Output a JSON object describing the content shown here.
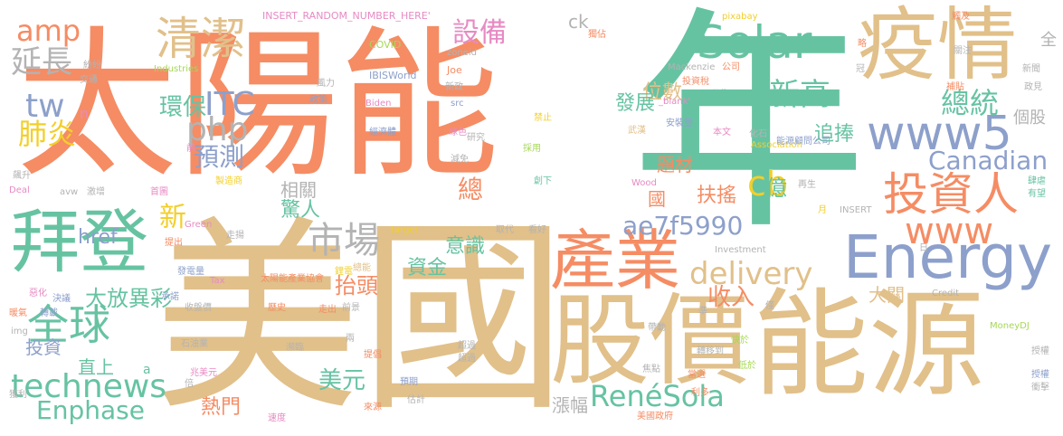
{
  "palette": {
    "orange": "#f58c64",
    "teal": "#66c3a2",
    "tan": "#e1c08a",
    "blue": "#8da0cb",
    "pink": "#e78ac3",
    "lime": "#a6d854",
    "yellow": "#f2cf2b",
    "gray": "#b3b3b3"
  },
  "words": [
    {
      "text": "太陽能",
      "color": "orange"
    },
    {
      "text": "年",
      "color": "teal"
    },
    {
      "text": "美國",
      "color": "tan"
    },
    {
      "text": "股價",
      "color": "tan"
    },
    {
      "text": "能源",
      "color": "tan"
    },
    {
      "text": "疫情",
      "color": "tan"
    },
    {
      "text": "產業",
      "color": "orange"
    },
    {
      "text": "拜登",
      "color": "teal"
    },
    {
      "text": "Energy",
      "color": "blue"
    },
    {
      "text": "Solar",
      "color": "teal"
    },
    {
      "text": "投資人",
      "color": "orange"
    },
    {
      "text": "www5",
      "color": "blue"
    },
    {
      "text": "清潔",
      "color": "tan"
    },
    {
      "text": "全球",
      "color": "teal"
    },
    {
      "text": "technews",
      "color": "teal"
    },
    {
      "text": "市場",
      "color": "gray"
    },
    {
      "text": "delivery",
      "color": "tan"
    },
    {
      "text": "www",
      "color": "orange"
    },
    {
      "text": "amp",
      "color": "orange"
    },
    {
      "text": "延長",
      "color": "gray"
    },
    {
      "text": "tw",
      "color": "blue"
    },
    {
      "text": "php",
      "color": "gray"
    },
    {
      "text": "ITC",
      "color": "blue"
    },
    {
      "text": "肺炎",
      "color": "yellow"
    },
    {
      "text": "預測",
      "color": "blue"
    },
    {
      "text": "環保",
      "color": "teal"
    },
    {
      "text": "新高",
      "color": "teal"
    },
    {
      "text": "設備",
      "color": "pink"
    },
    {
      "text": "總統",
      "color": "teal"
    },
    {
      "text": "cb",
      "color": "yellow"
    },
    {
      "text": "Canadian",
      "color": "blue"
    },
    {
      "text": "ae7f5990",
      "color": "blue"
    },
    {
      "text": "RenéSola",
      "color": "teal"
    },
    {
      "text": "Enphase",
      "color": "teal"
    },
    {
      "text": "美元",
      "color": "teal"
    },
    {
      "text": "收入",
      "color": "orange"
    },
    {
      "text": "大放異彩",
      "color": "teal"
    },
    {
      "text": "抬頭",
      "color": "orange"
    },
    {
      "text": "新",
      "color": "yellow"
    },
    {
      "text": "href",
      "color": "blue"
    },
    {
      "text": "總",
      "color": "orange"
    },
    {
      "text": "驚人",
      "color": "teal"
    },
    {
      "text": "相關",
      "color": "gray"
    },
    {
      "text": "意識",
      "color": "teal"
    },
    {
      "text": "資金",
      "color": "teal"
    },
    {
      "text": "位數",
      "color": "tan"
    },
    {
      "text": "發展",
      "color": "teal"
    },
    {
      "text": "追捧",
      "color": "teal"
    },
    {
      "text": "扶搖",
      "color": "orange"
    },
    {
      "text": "億",
      "color": "teal"
    },
    {
      "text": "國",
      "color": "orange"
    },
    {
      "text": "題材",
      "color": "orange"
    },
    {
      "text": "大關",
      "color": "tan"
    },
    {
      "text": "熱門",
      "color": "orange"
    },
    {
      "text": "漲幅",
      "color": "gray"
    },
    {
      "text": "直上",
      "color": "teal"
    },
    {
      "text": "投資",
      "color": "blue"
    },
    {
      "text": "個股",
      "color": "gray"
    },
    {
      "text": "全",
      "color": "gray"
    },
    {
      "text": "ck",
      "color": "gray"
    },
    {
      "text": "INSERT_RANDOM_NUMBER_HERE'",
      "color": "pink"
    },
    {
      "text": "COVID",
      "color": "lime"
    },
    {
      "text": "IBISWorld",
      "color": "blue"
    },
    {
      "text": "Industries",
      "color": "lime"
    },
    {
      "text": "Joe",
      "color": "orange"
    },
    {
      "text": "Biden",
      "color": "pink"
    },
    {
      "text": "src",
      "color": "blue"
    },
    {
      "text": "zoneid",
      "color": "gray"
    },
    {
      "text": "pixabay",
      "color": "yellow"
    },
    {
      "text": "Mackenzie",
      "color": "gray"
    },
    {
      "text": "公司",
      "color": "orange"
    },
    {
      "text": "_blank'",
      "color": "pink"
    },
    {
      "text": "Association",
      "color": "yellow"
    },
    {
      "text": "Wood",
      "color": "pink"
    },
    {
      "text": "INSERT",
      "color": "gray"
    },
    {
      "text": "Investment",
      "color": "gray"
    },
    {
      "text": "Credit",
      "color": "gray"
    },
    {
      "text": "MoneyDJ",
      "color": "lime"
    },
    {
      "text": "Tax",
      "color": "pink"
    },
    {
      "text": "Green",
      "color": "pink"
    },
    {
      "text": "target",
      "color": "yellow"
    },
    {
      "text": "Deal",
      "color": "pink"
    },
    {
      "text": "img",
      "color": "gray"
    },
    {
      "text": "avw",
      "color": "gray"
    },
    {
      "text": "n",
      "color": "pink"
    },
    {
      "text": "a",
      "color": "teal"
    },
    {
      "text": "紛紛",
      "color": "gray"
    },
    {
      "text": "交通",
      "color": "gray"
    },
    {
      "text": "風力",
      "color": "gray"
    },
    {
      "text": "政策",
      "color": "blue"
    },
    {
      "text": "新政",
      "color": "gray"
    },
    {
      "text": "超過",
      "color": "gray"
    },
    {
      "text": "綠色",
      "color": "pink"
    },
    {
      "text": "研究",
      "color": "gray"
    },
    {
      "text": "減免",
      "color": "gray"
    },
    {
      "text": "禁止",
      "color": "yellow"
    },
    {
      "text": "採用",
      "color": "lime"
    },
    {
      "text": "武漢",
      "color": "tan"
    },
    {
      "text": "安裝量",
      "color": "blue"
    },
    {
      "text": "本文",
      "color": "pink"
    },
    {
      "text": "化石",
      "color": "gray"
    },
    {
      "text": "能源顧問公司",
      "color": "blue"
    },
    {
      "text": "投資稅",
      "color": "orange"
    },
    {
      "text": "公告",
      "color": "teal"
    },
    {
      "text": "經濟體",
      "color": "blue"
    },
    {
      "text": "創下",
      "color": "teal"
    },
    {
      "text": "製造商",
      "color": "yellow"
    },
    {
      "text": "首圖",
      "color": "pink"
    },
    {
      "text": "激增",
      "color": "gray"
    },
    {
      "text": "飆升",
      "color": "gray"
    },
    {
      "text": "發電量",
      "color": "blue"
    },
    {
      "text": "提出",
      "color": "orange"
    },
    {
      "text": "走揚",
      "color": "gray"
    },
    {
      "text": "取代",
      "color": "gray"
    },
    {
      "text": "看好",
      "color": "gray"
    },
    {
      "text": "太陽能產業協會",
      "color": "orange"
    },
    {
      "text": "總能",
      "color": "tan"
    },
    {
      "text": "承諾",
      "color": "blue"
    },
    {
      "text": "收盤價",
      "color": "gray"
    },
    {
      "text": "歷史",
      "color": "orange"
    },
    {
      "text": "走出",
      "color": "orange"
    },
    {
      "text": "前景",
      "color": "gray"
    },
    {
      "text": "石油業",
      "color": "gray"
    },
    {
      "text": "瀕臨",
      "color": "gray"
    },
    {
      "text": "提倡",
      "color": "orange"
    },
    {
      "text": "兩",
      "color": "gray"
    },
    {
      "text": "預期",
      "color": "blue"
    },
    {
      "text": "超過",
      "color": "gray"
    },
    {
      "text": "估計",
      "color": "gray"
    },
    {
      "text": "帶動",
      "color": "gray"
    },
    {
      "text": "轉移到",
      "color": "gray"
    },
    {
      "text": "當選",
      "color": "orange"
    },
    {
      "text": "利多",
      "color": "orange"
    },
    {
      "text": "美國政府",
      "color": "orange"
    },
    {
      "text": "焦點",
      "color": "gray"
    },
    {
      "text": "快於",
      "color": "lime"
    },
    {
      "text": "低於",
      "color": "lime"
    },
    {
      "text": "再生",
      "color": "gray"
    },
    {
      "text": "日",
      "color": "gray"
    },
    {
      "text": "月",
      "color": "yellow"
    },
    {
      "text": "肆虐",
      "color": "teal"
    },
    {
      "text": "有望",
      "color": "teal"
    },
    {
      "text": "倍",
      "color": "gray"
    },
    {
      "text": "僅",
      "color": "gray"
    },
    {
      "text": "準",
      "color": "gray"
    },
    {
      "text": "暖氣",
      "color": "orange"
    },
    {
      "text": "轉載",
      "color": "blue"
    },
    {
      "text": "決議",
      "color": "blue"
    },
    {
      "text": "惡化",
      "color": "pink"
    },
    {
      "text": "兆美元",
      "color": "pink"
    },
    {
      "text": "速度",
      "color": "pink"
    },
    {
      "text": "來源",
      "color": "orange"
    },
    {
      "text": "鋰電",
      "color": "yellow"
    },
    {
      "text": "關注",
      "color": "gray"
    },
    {
      "text": "補貼",
      "color": "orange"
    },
    {
      "text": "新聞",
      "color": "gray"
    },
    {
      "text": "政見",
      "color": "gray"
    },
    {
      "text": "觸及",
      "color": "orange"
    },
    {
      "text": "獨佔",
      "color": "orange"
    },
    {
      "text": "冠",
      "color": "gray"
    },
    {
      "text": "略",
      "color": "orange"
    },
    {
      "text": "煤",
      "color": "teal"
    },
    {
      "text": "前",
      "color": "pink"
    },
    {
      "text": "授權",
      "color": "gray"
    },
    {
      "text": "授權",
      "color": "blue"
    },
    {
      "text": "衝擊",
      "color": "gray"
    },
    {
      "text": "獲利",
      "color": "gray"
    }
  ]
}
